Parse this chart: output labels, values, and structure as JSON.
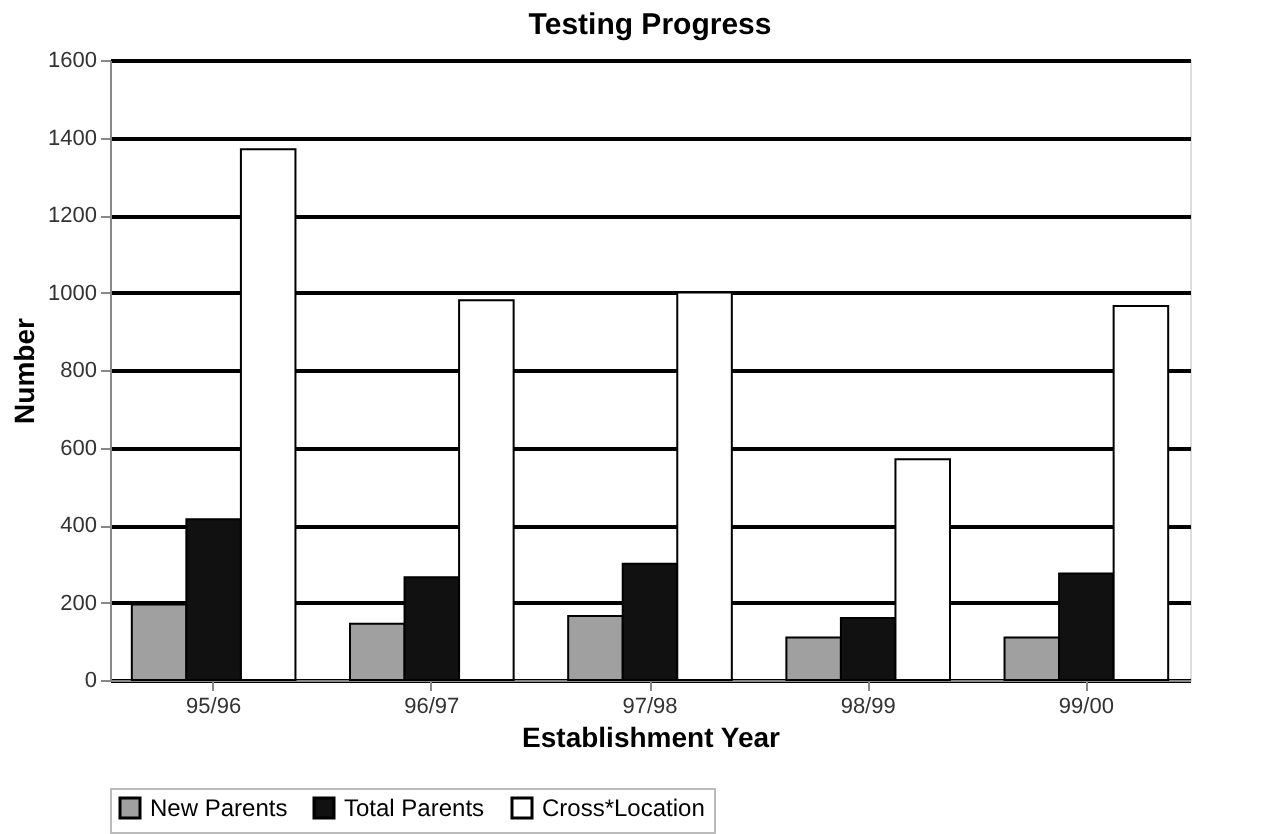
{
  "chart_data": {
    "type": "bar",
    "title": "Testing Progress",
    "xlabel": "Establishment Year",
    "ylabel": "Number",
    "categories": [
      "95/96",
      "96/97",
      "97/98",
      "98/99",
      "99/00"
    ],
    "series": [
      {
        "name": "New Parents",
        "color": "#a0a0a0",
        "values": [
          195,
          145,
          165,
          110,
          110
        ]
      },
      {
        "name": "Total Parents",
        "color": "#111111",
        "values": [
          415,
          265,
          300,
          160,
          275
        ]
      },
      {
        "name": "Cross*Location",
        "color": "#ffffff",
        "values": [
          1370,
          980,
          1000,
          570,
          965
        ]
      }
    ],
    "ylim": [
      0,
      1600
    ],
    "yticks": [
      0,
      200,
      400,
      600,
      800,
      1000,
      1200,
      1400,
      1600
    ],
    "grid": "y",
    "legend": "bottom"
  }
}
